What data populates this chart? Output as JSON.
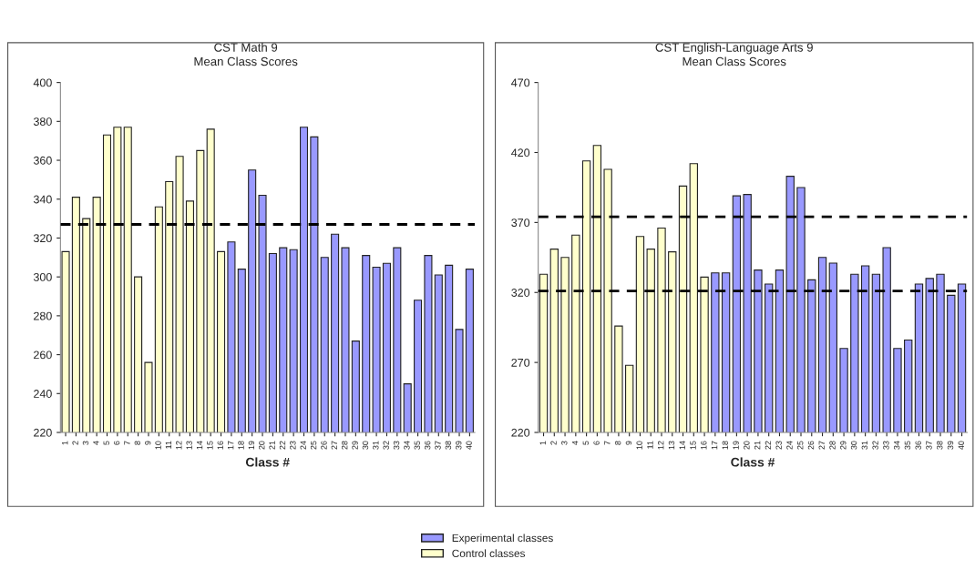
{
  "chart_data": [
    {
      "type": "bar",
      "title": "CST Math 9",
      "subtitle": "Mean Class Scores",
      "xlabel": "Class #",
      "categories": [
        "1",
        "2",
        "3",
        "4",
        "5",
        "6",
        "7",
        "8",
        "9",
        "10",
        "11",
        "12",
        "13",
        "14",
        "15",
        "16",
        "17",
        "18",
        "19",
        "20",
        "21",
        "22",
        "23",
        "24",
        "25",
        "26",
        "27",
        "28",
        "29",
        "30",
        "31",
        "32",
        "33",
        "34",
        "35",
        "36",
        "37",
        "38",
        "39",
        "40"
      ],
      "series": [
        {
          "name": "Experimental classes",
          "color": "#9999ff",
          "values": [
            null,
            null,
            null,
            null,
            null,
            null,
            null,
            null,
            null,
            null,
            null,
            null,
            null,
            null,
            null,
            null,
            318,
            304,
            355,
            342,
            312,
            315,
            314,
            377,
            372,
            310,
            322,
            315,
            267,
            311,
            305,
            307,
            315,
            245,
            288,
            311,
            301,
            306,
            273,
            304
          ]
        },
        {
          "name": "Control classes",
          "color": "#ffffcc",
          "values": [
            313,
            341,
            330,
            341,
            373,
            377,
            377,
            300,
            256,
            336,
            349,
            362,
            339,
            365,
            376,
            313,
            null,
            null,
            null,
            null,
            null,
            null,
            null,
            null,
            null,
            null,
            null,
            null,
            null,
            null,
            null,
            null,
            null,
            null,
            null,
            null,
            null,
            null,
            null,
            null
          ]
        }
      ],
      "ylim": [
        220,
        400
      ],
      "yticks": [
        220,
        240,
        260,
        280,
        300,
        320,
        340,
        360,
        380,
        400
      ],
      "grid": false,
      "legend": "bottom",
      "ref_lines": [
        {
          "axis": "y",
          "value": 327,
          "color": "#000000",
          "line_style": "dashed"
        }
      ]
    },
    {
      "type": "bar",
      "title": "CST English-Language Arts 9",
      "subtitle": "Mean Class Scores",
      "xlabel": "Class #",
      "categories": [
        "1",
        "2",
        "3",
        "4",
        "5",
        "6",
        "7",
        "8",
        "9",
        "10",
        "11",
        "12",
        "13",
        "14",
        "15",
        "16",
        "17",
        "18",
        "19",
        "20",
        "21",
        "22",
        "23",
        "24",
        "25",
        "26",
        "27",
        "28",
        "29",
        "30",
        "31",
        "32",
        "33",
        "34",
        "35",
        "36",
        "37",
        "38",
        "39",
        "40"
      ],
      "series": [
        {
          "color": "#9999ff",
          "values": [
            null,
            null,
            null,
            null,
            null,
            null,
            null,
            null,
            null,
            null,
            null,
            null,
            null,
            null,
            null,
            null,
            334,
            334,
            389,
            390,
            336,
            326,
            336,
            403,
            395,
            329,
            345,
            341,
            280,
            333,
            339,
            333,
            352,
            280,
            286,
            326,
            330,
            333,
            318,
            326
          ]
        },
        {
          "color": "#ffffcc",
          "values": [
            333,
            351,
            345,
            361,
            414,
            425,
            408,
            296,
            268,
            360,
            351,
            366,
            349,
            396,
            412,
            331,
            null,
            null,
            null,
            null,
            null,
            null,
            null,
            null,
            null,
            null,
            null,
            null,
            null,
            null,
            null,
            null,
            null,
            null,
            null,
            null,
            null,
            null,
            null,
            null
          ]
        }
      ],
      "ylim": [
        220,
        470
      ],
      "yticks": [
        220,
        270,
        320,
        370,
        420,
        470
      ],
      "grid": false,
      "ref_lines": [
        {
          "axis": "y",
          "value": 374,
          "color": "#000000",
          "line_style": "dashed"
        },
        {
          "axis": "y",
          "value": 321,
          "color": "#000000",
          "line_style": "dashed"
        }
      ]
    }
  ]
}
